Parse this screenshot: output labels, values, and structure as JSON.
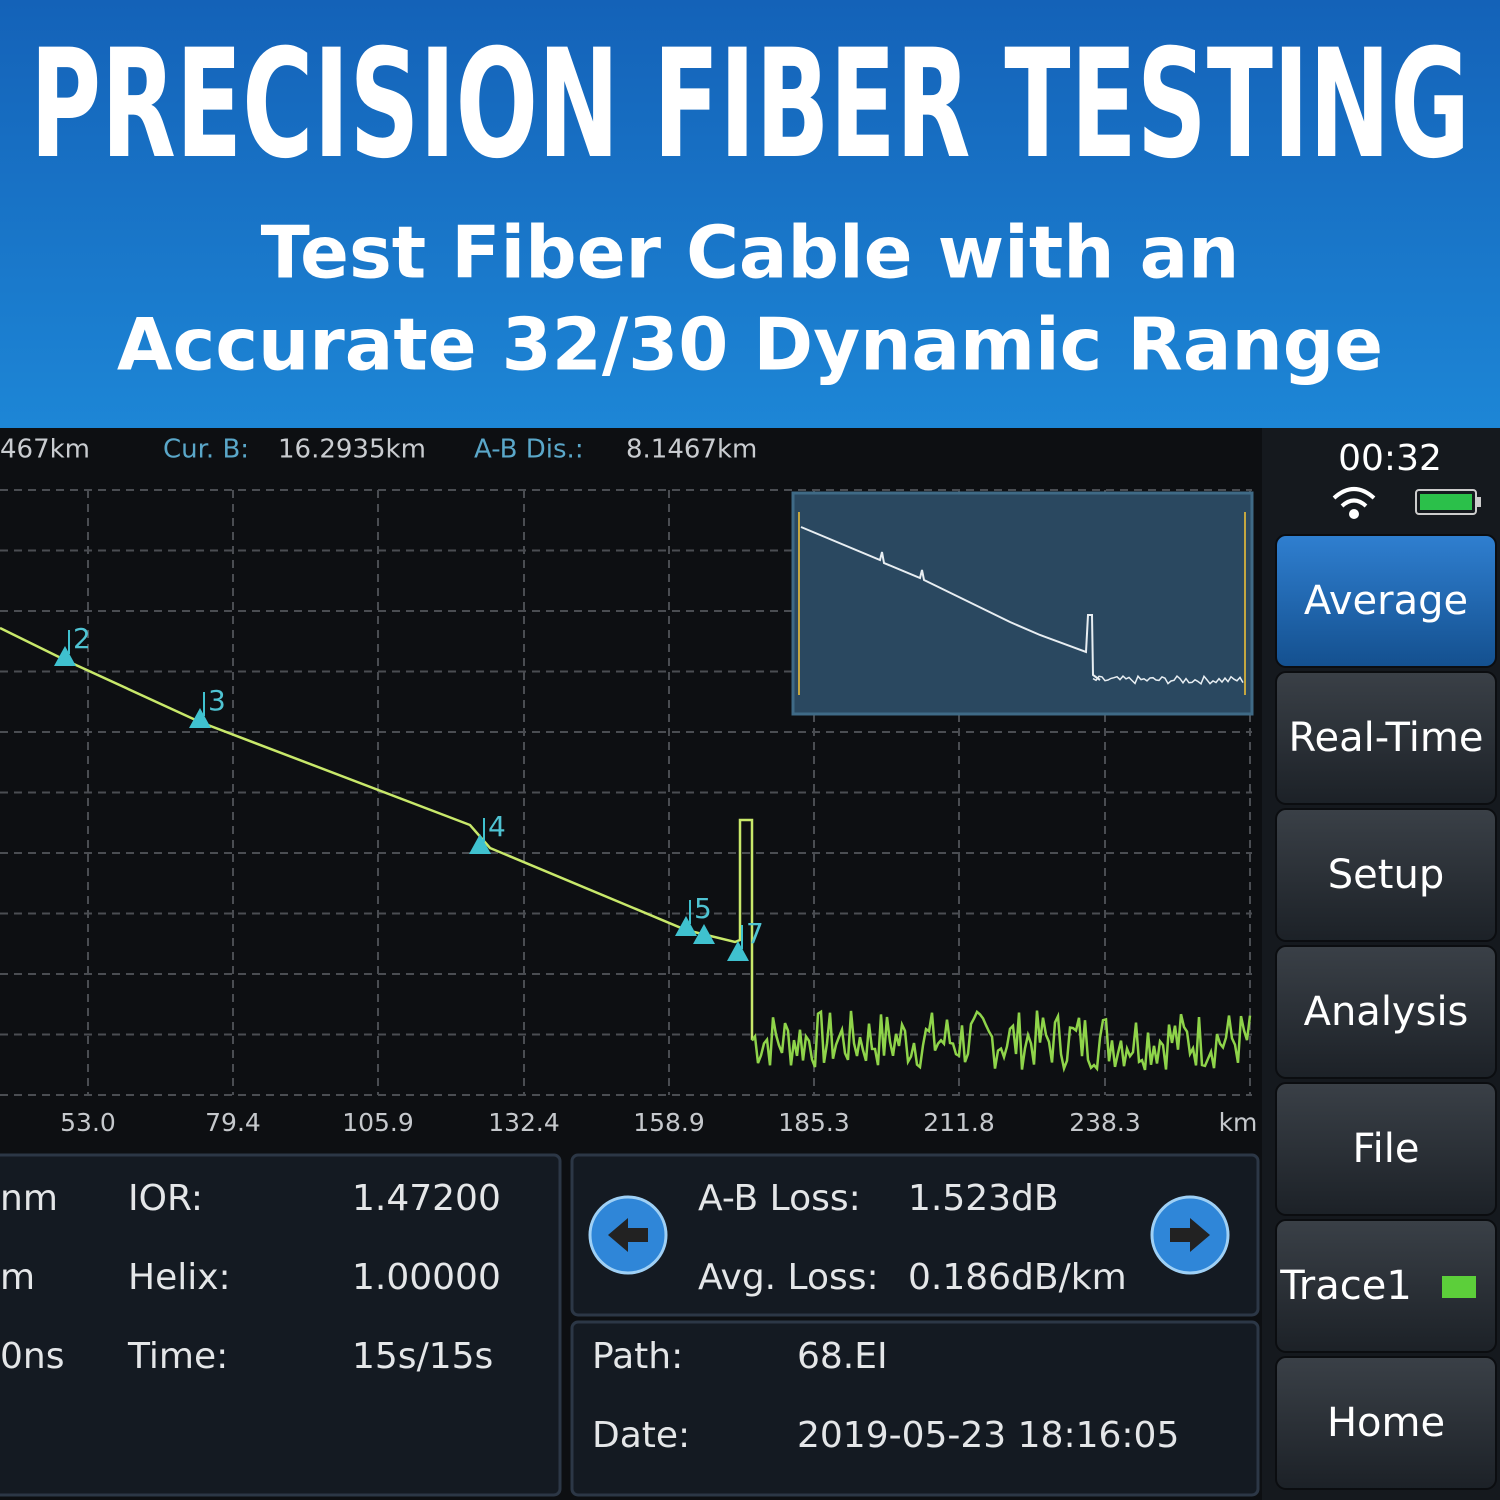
{
  "banner": {
    "title": "PRECISION FIBER TESTING",
    "subtitle_lines": [
      "Test Fiber Cable with an",
      "Accurate 32/30 Dynamic Range"
    ]
  },
  "status_bar": {
    "cursor_a": "467km",
    "cursor_b_label": "Cur. B:",
    "cursor_b": "16.2935km",
    "ab_dist_label": "A-B Dis.:",
    "ab_dist": "8.1467km",
    "clock": "00:32"
  },
  "trace": {
    "x_labels": [
      "53.0",
      "79.4",
      "105.9",
      "132.4",
      "158.9",
      "185.3",
      "211.8",
      "238.3"
    ],
    "x_unit": "km",
    "events": [
      "2",
      "3",
      "4",
      "5",
      "7"
    ]
  },
  "menu": [
    "Average",
    "Real-Time",
    "Setup",
    "Analysis",
    "File",
    "Trace1",
    "Home"
  ],
  "params": [
    [
      "nm",
      "IOR:",
      "1.47200"
    ],
    [
      "m",
      "Helix:",
      "1.00000"
    ],
    [
      "0ns",
      "Time:",
      "15s/15s"
    ]
  ],
  "loss": [
    [
      "A-B Loss:",
      "1.523dB"
    ],
    [
      "Avg. Loss:",
      "0.186dB/km"
    ]
  ],
  "info": [
    [
      "Path:",
      "68.EI"
    ],
    [
      "Date:",
      "2019-05-23 18:16:05"
    ]
  ]
}
